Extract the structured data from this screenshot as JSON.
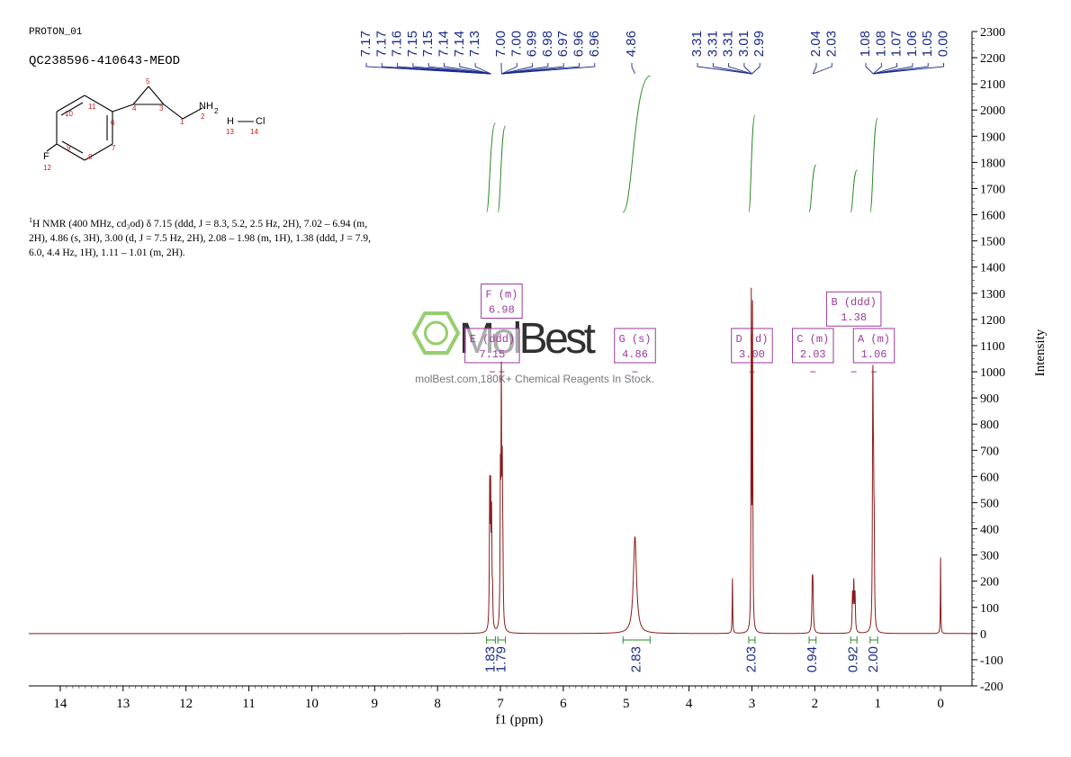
{
  "header": {
    "pulse_program": "PROTON_01",
    "sample_id": "QC238596-410643-MEOD"
  },
  "structure": {
    "labels": [
      {
        "text": "5",
        "color": "red"
      },
      {
        "text": "10",
        "color": "red"
      },
      {
        "text": "11",
        "color": "red"
      },
      {
        "text": "4",
        "color": "red"
      },
      {
        "text": "3",
        "color": "red"
      },
      {
        "text": "6",
        "color": "red"
      },
      {
        "text": "1",
        "color": "red"
      },
      {
        "text": "2",
        "color": "red"
      },
      {
        "text": "9",
        "color": "red"
      },
      {
        "text": "7",
        "color": "red"
      },
      {
        "text": "8",
        "color": "red"
      },
      {
        "text": "12",
        "color": "red"
      },
      {
        "text": "13",
        "color": "red"
      },
      {
        "text": "14",
        "color": "red"
      },
      {
        "text": "F",
        "color": "black"
      },
      {
        "text": "NH",
        "color": "black"
      },
      {
        "text": "2",
        "color": "black"
      },
      {
        "text": "H",
        "color": "black"
      },
      {
        "text": "Cl",
        "color": "black"
      }
    ]
  },
  "nmr_description": {
    "sup": "1",
    "text": "H NMR (400 MHz, cd₃od) δ 7.15 (ddd, J = 8.3, 5.2, 2.5 Hz, 2H), 7.02 – 6.94 (m, 2H), 4.86 (s, 3H), 3.00 (d, J = 7.5 Hz, 2H), 2.08 – 1.98 (m, 1H), 1.38 (ddd, J = 7.9, 6.0, 4.4 Hz, 1H), 1.11 – 1.01 (m, 2H)."
  },
  "watermark": {
    "logo": "MolBest",
    "tagline": "molBest.com,180K+ Chemical Reagents In Stock."
  },
  "colors": {
    "spectrum": "#8b1a1a",
    "peak_labels": "#1a2a8a",
    "integration": "#2a8a2a",
    "multiplet_boxes": "#9b3a9b",
    "watermark": "#7ac24a"
  },
  "chart_data": {
    "type": "line",
    "xlabel": "f1 (ppm)",
    "ylabel": "Intensity",
    "xlim": [
      14.5,
      -0.5
    ],
    "ylim": [
      -200,
      2300
    ],
    "x_ticks": [
      14,
      13,
      12,
      11,
      10,
      9,
      8,
      7,
      6,
      5,
      4,
      3,
      2,
      1,
      0
    ],
    "y_ticks": [
      -200,
      -100,
      0,
      100,
      200,
      300,
      400,
      500,
      600,
      700,
      800,
      900,
      1000,
      1100,
      1200,
      1300,
      1400,
      1500,
      1600,
      1700,
      1800,
      1900,
      2000,
      2100,
      2200,
      2300
    ],
    "peaks": [
      {
        "ppm": 7.17,
        "height": 520,
        "width": 0.006
      },
      {
        "ppm": 7.155,
        "height": 470,
        "width": 0.006
      },
      {
        "ppm": 7.14,
        "height": 400,
        "width": 0.006
      },
      {
        "ppm": 7.125,
        "height": 120,
        "width": 0.006
      },
      {
        "ppm": 7.0,
        "height": 540,
        "width": 0.006
      },
      {
        "ppm": 6.985,
        "height": 880,
        "width": 0.006
      },
      {
        "ppm": 6.97,
        "height": 520,
        "width": 0.006
      },
      {
        "ppm": 6.96,
        "height": 200,
        "width": 0.006
      },
      {
        "ppm": 4.86,
        "height": 370,
        "width": 0.03
      },
      {
        "ppm": 3.31,
        "height": 210,
        "width": 0.005
      },
      {
        "ppm": 3.01,
        "height": 1250,
        "width": 0.005
      },
      {
        "ppm": 2.99,
        "height": 1200,
        "width": 0.005
      },
      {
        "ppm": 2.04,
        "height": 160,
        "width": 0.008
      },
      {
        "ppm": 2.03,
        "height": 150,
        "width": 0.008
      },
      {
        "ppm": 1.4,
        "height": 140,
        "width": 0.007
      },
      {
        "ppm": 1.38,
        "height": 180,
        "width": 0.007
      },
      {
        "ppm": 1.36,
        "height": 140,
        "width": 0.007
      },
      {
        "ppm": 1.08,
        "height": 390,
        "width": 0.006
      },
      {
        "ppm": 1.075,
        "height": 660,
        "width": 0.006
      },
      {
        "ppm": 1.065,
        "height": 420,
        "width": 0.006
      },
      {
        "ppm": 1.055,
        "height": 300,
        "width": 0.006
      },
      {
        "ppm": 0.0,
        "height": 290,
        "width": 0.004
      }
    ],
    "peak_labels": [
      "7.17",
      "7.17",
      "7.16",
      "7.15",
      "7.15",
      "7.14",
      "7.14",
      "7.13",
      "7.00",
      "7.00",
      "6.99",
      "6.98",
      "6.97",
      "6.96",
      "6.96",
      "4.86",
      "3.31",
      "3.31",
      "3.31",
      "3.01",
      "2.99",
      "2.04",
      "2.03",
      "1.08",
      "1.08",
      "1.07",
      "1.06",
      "1.05",
      "0.00"
    ],
    "integrals": [
      {
        "from": 7.22,
        "to": 7.08,
        "value": "1.83",
        "curve_top": 1950,
        "curve_bottom": 1610
      },
      {
        "from": 7.04,
        "to": 6.92,
        "value": "1.79",
        "curve_top": 1940,
        "curve_bottom": 1610
      },
      {
        "from": 5.05,
        "to": 4.62,
        "value": "2.83",
        "curve_top": 2130,
        "curve_bottom": 1610
      },
      {
        "from": 3.05,
        "to": 2.95,
        "value": "2.03",
        "curve_top": 1980,
        "curve_bottom": 1610
      },
      {
        "from": 2.09,
        "to": 1.98,
        "value": "0.94",
        "curve_top": 1790,
        "curve_bottom": 1610
      },
      {
        "from": 1.43,
        "to": 1.33,
        "value": "0.92",
        "curve_top": 1770,
        "curve_bottom": 1610
      },
      {
        "from": 1.12,
        "to": 1.0,
        "value": "2.00",
        "curve_top": 1970,
        "curve_bottom": 1610
      }
    ],
    "multiplets": [
      {
        "name": "F (m)",
        "shift": "6.98",
        "ppm": 6.98,
        "level": 1270
      },
      {
        "name": "E (ddd)",
        "shift": "7.15",
        "ppm": 7.13,
        "level": 1100
      },
      {
        "name": "G (s)",
        "shift": "4.86",
        "ppm": 4.86,
        "level": 1100
      },
      {
        "name": "D (d)",
        "shift": "3.00",
        "ppm": 3.0,
        "level": 1100
      },
      {
        "name": "C (m)",
        "shift": "2.03",
        "ppm": 2.03,
        "level": 1100
      },
      {
        "name": "B (ddd)",
        "shift": "1.38",
        "ppm": 1.38,
        "level": 1240
      },
      {
        "name": "A (m)",
        "shift": "1.06",
        "ppm": 1.06,
        "level": 1100
      }
    ]
  }
}
